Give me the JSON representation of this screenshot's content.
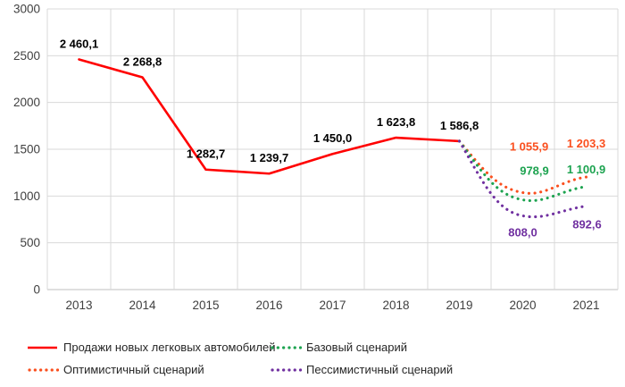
{
  "chart_data": {
    "type": "line",
    "title": "",
    "xlabel": "",
    "ylabel": "",
    "categories": [
      "2013",
      "2014",
      "2015",
      "2016",
      "2017",
      "2018",
      "2019",
      "2020",
      "2021"
    ],
    "ylim": [
      0,
      3000
    ],
    "y_ticks": [
      "0",
      "500",
      "1000",
      "1500",
      "2000",
      "2500",
      "3000"
    ],
    "grid": "on",
    "legend_position": "bottom",
    "colors": {
      "actual": "#FF0000",
      "optimistic": "#FA4F1E",
      "base": "#1DA350",
      "pessimistic": "#7030A0",
      "gridline": "#D9D9D9",
      "axis_line": "#BFBFBF",
      "tick_text": "#404040",
      "data_label_text": "#000000"
    },
    "series": [
      {
        "name": "Продажи новых легковых автомобилей",
        "style": "solid",
        "color_key": "actual",
        "x": [
          "2013",
          "2014",
          "2015",
          "2016",
          "2017",
          "2018",
          "2019"
        ],
        "values": [
          2460.1,
          2268.8,
          1282.7,
          1239.7,
          1450.0,
          1623.8,
          1586.8
        ],
        "labels": [
          "2 460,1",
          "2 268,8",
          "1 282,7",
          "1 239,7",
          "1 450,0",
          "1 623,8",
          "1 586,8"
        ]
      },
      {
        "name": "Оптимистичный сценарий",
        "style": "dotted",
        "color_key": "optimistic",
        "x": [
          "2019",
          "2020",
          "2021"
        ],
        "values": [
          1586.8,
          1055.9,
          1203.3
        ],
        "labels": [
          "",
          "1 055,9",
          "1 203,3"
        ]
      },
      {
        "name": "Базовый сценарий",
        "style": "dotted",
        "color_key": "base",
        "x": [
          "2019",
          "2020",
          "2021"
        ],
        "values": [
          1586.8,
          978.9,
          1100.9
        ],
        "labels": [
          "",
          "978,9",
          "1 100,9"
        ]
      },
      {
        "name": "Пессимистичный сценарий",
        "style": "dotted",
        "color_key": "pessimistic",
        "x": [
          "2019",
          "2020",
          "2021"
        ],
        "values": [
          1586.8,
          808.0,
          892.6
        ],
        "labels": [
          "",
          "808,0",
          "892,6"
        ]
      }
    ]
  }
}
